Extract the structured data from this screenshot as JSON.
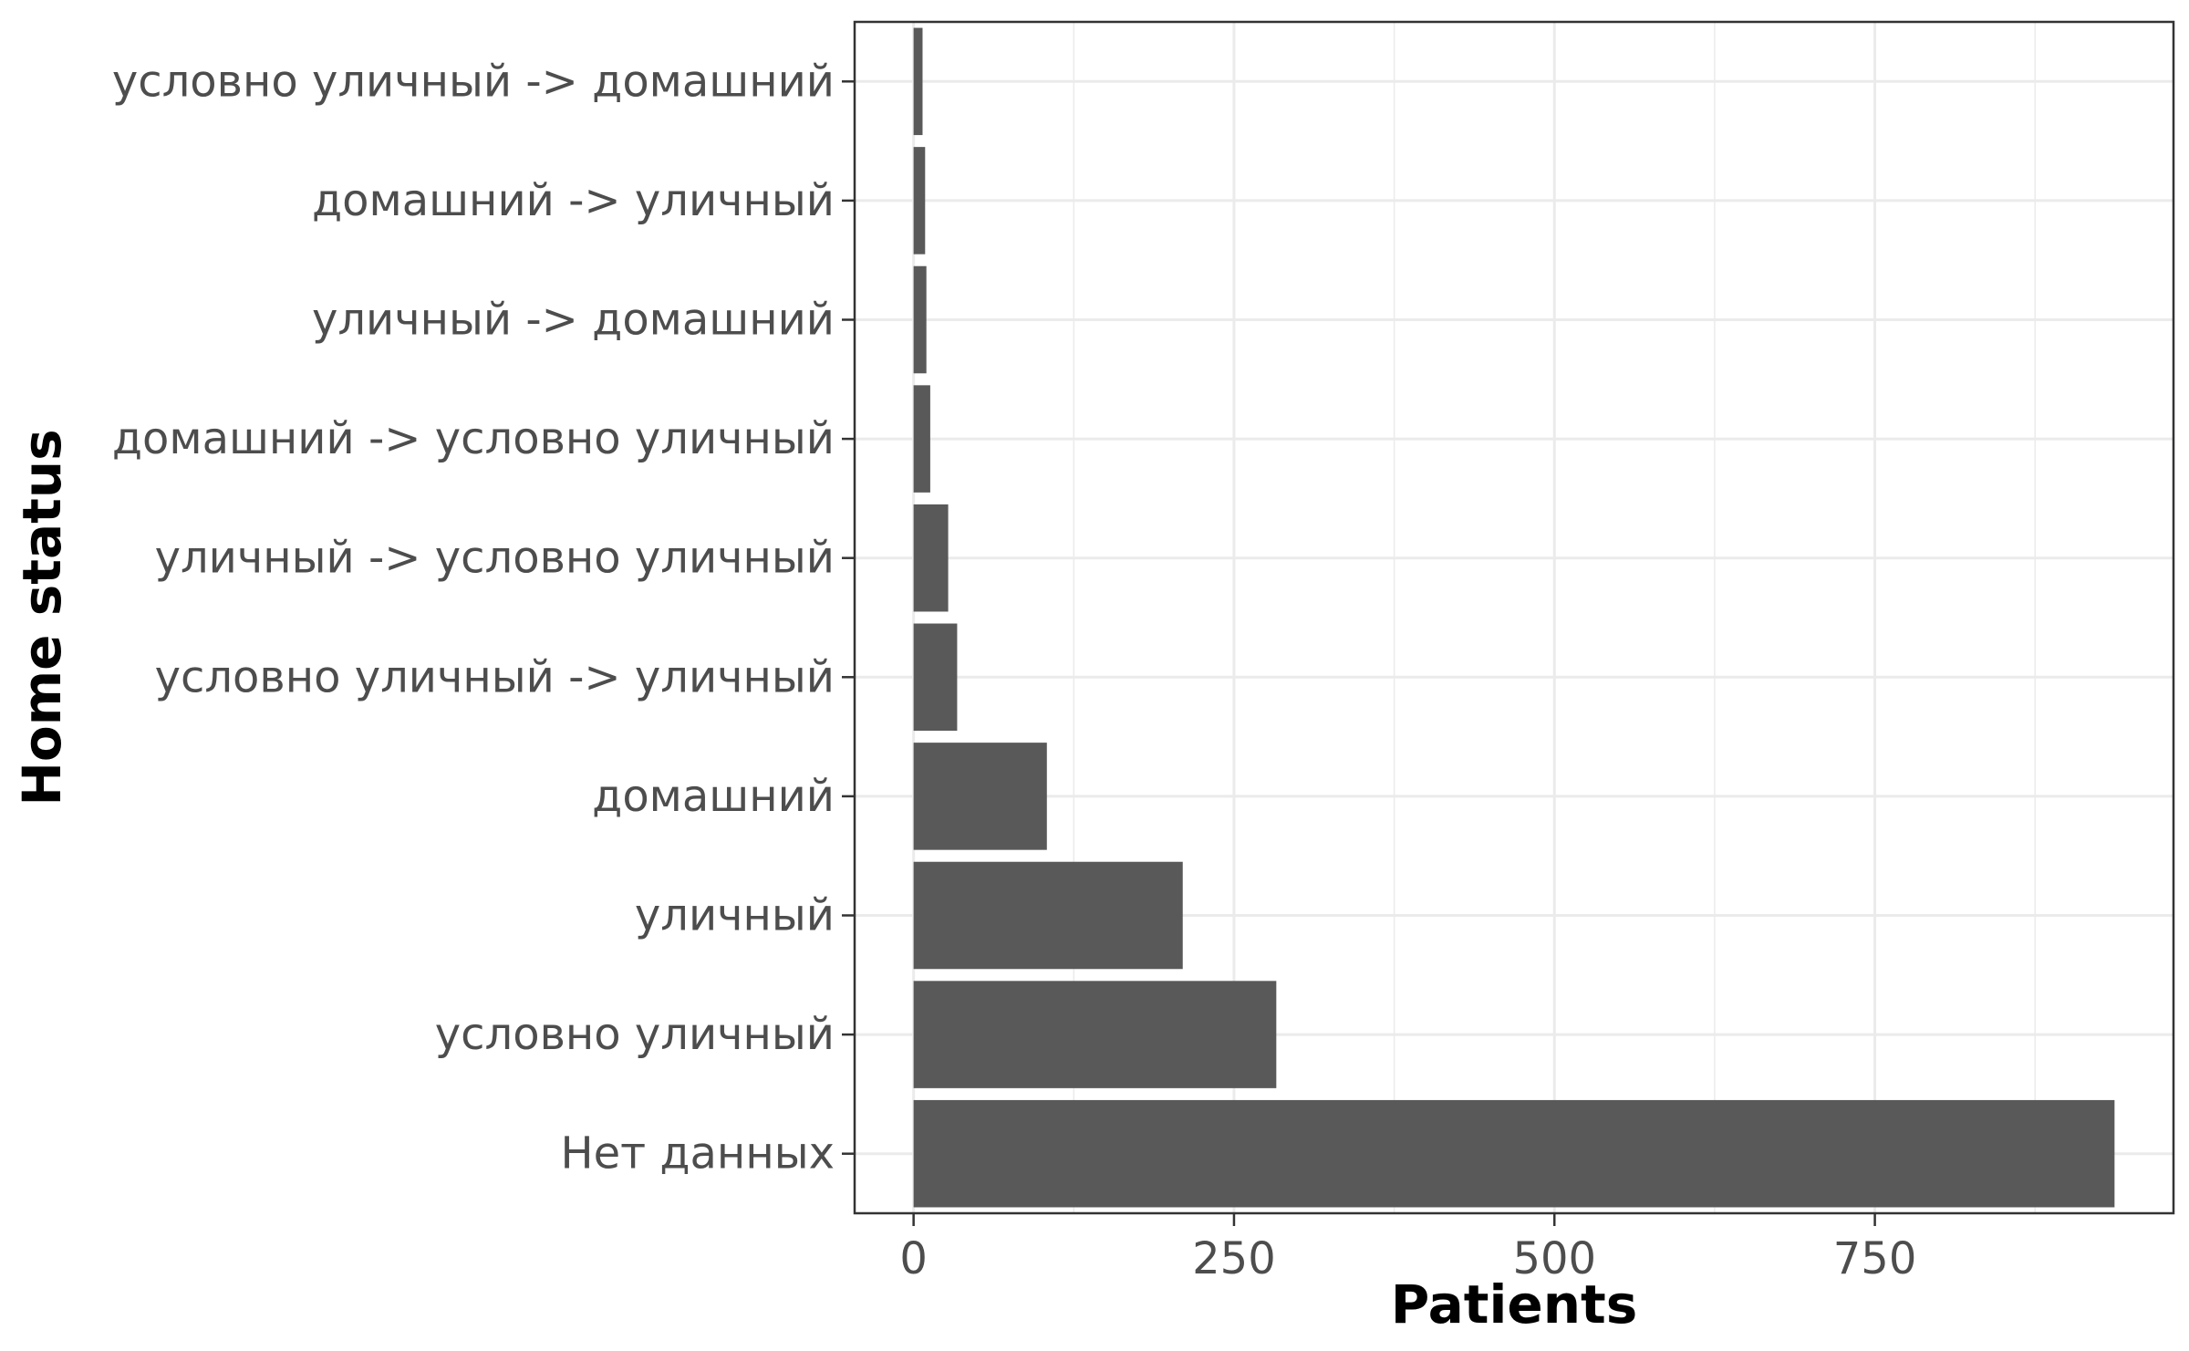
{
  "chart_data": {
    "type": "bar",
    "orientation": "horizontal",
    "xlabel": "Patients",
    "ylabel": "Home status",
    "categories": [
      "Нет данных",
      "условно уличный",
      "уличный",
      "домашний",
      "условно уличный -> уличный",
      "уличный -> условно уличный",
      "домашний -> условно уличный",
      "уличный -> домашний",
      "домашний -> уличный",
      "условно уличный -> домашний"
    ],
    "values": [
      937,
      283,
      210,
      104,
      34,
      27,
      13,
      10,
      9,
      7
    ],
    "xlim": [
      -46,
      983
    ],
    "x_ticks": [
      0,
      250,
      500,
      750
    ],
    "x_tick_labels": [
      "0",
      "250",
      "500",
      "750"
    ],
    "x_minor_gridlines": [
      125,
      375,
      625,
      875
    ],
    "grid": true,
    "legend": "none",
    "colors": {
      "bar": "#595959",
      "grid": "#ebebeb",
      "panel_border": "#333333",
      "tick": "#333333"
    }
  }
}
